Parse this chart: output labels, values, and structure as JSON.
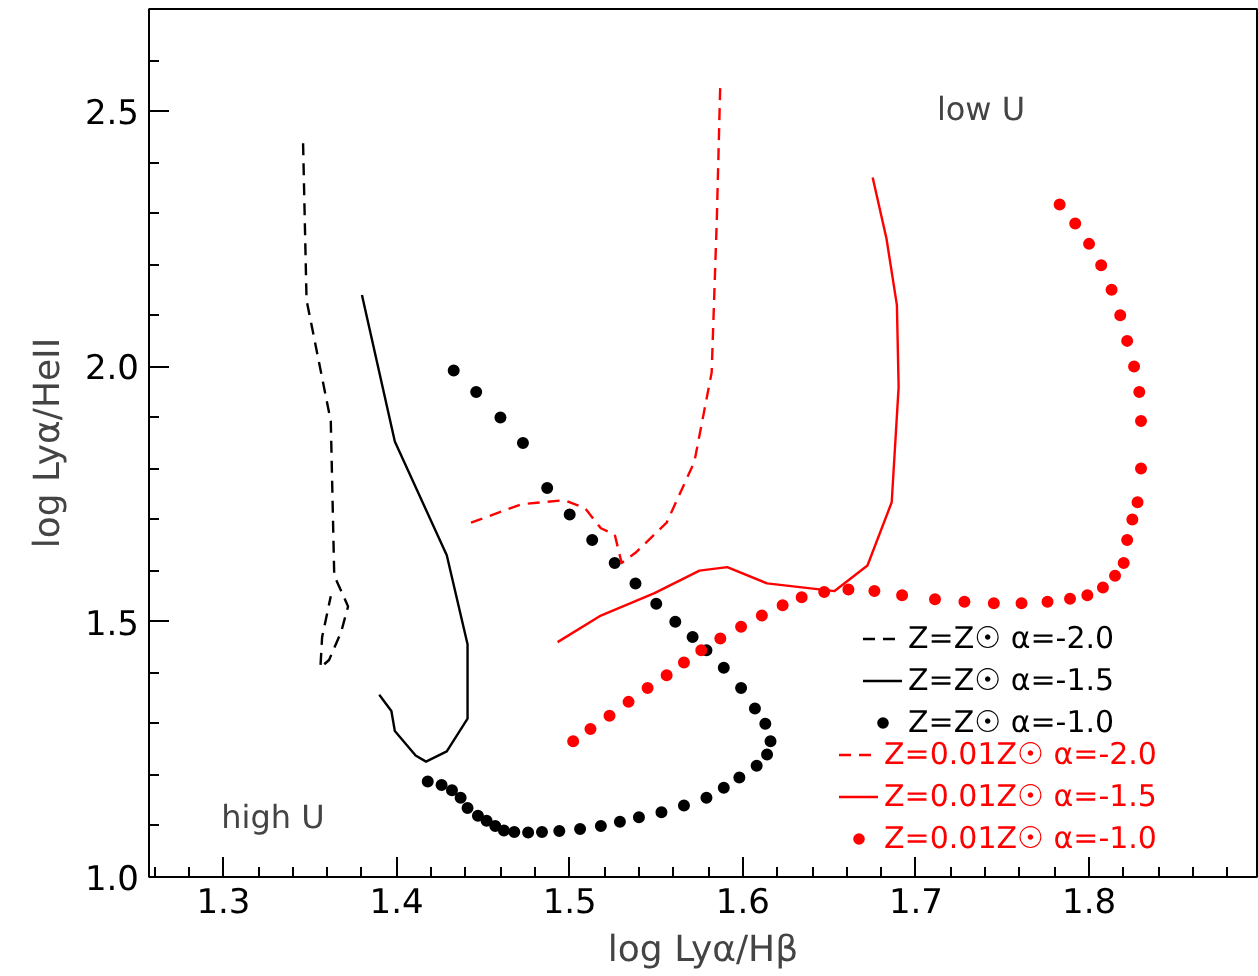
{
  "chart_data": {
    "type": "line",
    "xlabel": "log Lyα/Hβ",
    "ylabel": "log Lyα/HeII",
    "xlim": [
      1.257,
      1.897
    ],
    "ylim": [
      1.0,
      2.7
    ],
    "xticks": [
      1.3,
      1.4,
      1.5,
      1.6,
      1.7,
      1.8
    ],
    "yticks": [
      {
        "value": 1,
        "label": "1.0"
      },
      1.5,
      {
        "value": 2,
        "label": "2.0"
      },
      2.5
    ],
    "grid": false,
    "legend": "bottom right",
    "annotations": [
      "low U",
      "high U"
    ],
    "series": [
      {
        "name": "Z=Z☉ α=-2.0",
        "color": "#000000",
        "line_style": "dashed",
        "x": [
          1.346,
          1.348,
          1.362,
          1.364,
          1.372,
          1.368,
          1.361,
          1.356,
          1.357,
          1.362
        ],
        "values": [
          2.437,
          2.13,
          1.893,
          1.59,
          1.53,
          1.48,
          1.425,
          1.41,
          1.47,
          1.55
        ]
      },
      {
        "name": "Z=Z☉ α=-1.5",
        "color": "#000000",
        "line_style": "solid",
        "x": [
          1.38,
          1.399,
          1.429,
          1.441,
          1.441,
          1.429,
          1.417,
          1.411,
          1.399,
          1.397,
          1.39
        ],
        "values": [
          2.14,
          1.853,
          1.63,
          1.456,
          1.31,
          1.246,
          1.226,
          1.238,
          1.286,
          1.325,
          1.357
        ]
      },
      {
        "name": "Z=Z☉ α=-1.0",
        "color": "#000000",
        "type": "scatter",
        "marker": "circle",
        "x": [
          1.433,
          1.446,
          1.46,
          1.473,
          1.487,
          1.5,
          1.513,
          1.526,
          1.538,
          1.55,
          1.561,
          1.571,
          1.579,
          1.589,
          1.599,
          1.607,
          1.613,
          1.616,
          1.614,
          1.608,
          1.598,
          1.589,
          1.579,
          1.566,
          1.553,
          1.54,
          1.529,
          1.518,
          1.506,
          1.494,
          1.484,
          1.476,
          1.468,
          1.462,
          1.457,
          1.452,
          1.447,
          1.441,
          1.437,
          1.432,
          1.426,
          1.418
        ],
        "values": [
          1.992,
          1.95,
          1.9,
          1.85,
          1.762,
          1.71,
          1.66,
          1.615,
          1.575,
          1.535,
          1.5,
          1.47,
          1.444,
          1.41,
          1.37,
          1.33,
          1.3,
          1.266,
          1.24,
          1.218,
          1.195,
          1.175,
          1.155,
          1.14,
          1.127,
          1.117,
          1.108,
          1.1,
          1.094,
          1.09,
          1.088,
          1.087,
          1.088,
          1.091,
          1.1,
          1.11,
          1.12,
          1.135,
          1.155,
          1.17,
          1.18,
          1.187
        ]
      },
      {
        "name": "Z=0.01Z☉ α=-2.0",
        "color": "#ff0000",
        "line_style": "dashed",
        "x": [
          1.443,
          1.472,
          1.497,
          1.509,
          1.518,
          1.526,
          1.53,
          1.538,
          1.556,
          1.572,
          1.582,
          1.585,
          1.587
        ],
        "values": [
          1.694,
          1.73,
          1.738,
          1.722,
          1.683,
          1.671,
          1.615,
          1.635,
          1.694,
          1.813,
          1.988,
          2.29,
          2.556
        ]
      },
      {
        "name": "Z=0.01Z☉ α=-1.5",
        "color": "#ff0000",
        "line_style": "solid",
        "x": [
          1.493,
          1.518,
          1.549,
          1.575,
          1.591,
          1.614,
          1.653,
          1.672,
          1.686,
          1.69,
          1.689,
          1.683,
          1.675
        ],
        "values": [
          1.46,
          1.512,
          1.556,
          1.6,
          1.607,
          1.575,
          1.56,
          1.61,
          1.734,
          1.96,
          2.12,
          2.25,
          2.37
        ]
      },
      {
        "name": "Z=0.01Z☉ α=-1.0",
        "color": "#ff0000",
        "type": "scatter",
        "marker": "circle",
        "x": [
          1.502,
          1.512,
          1.523,
          1.534,
          1.545,
          1.556,
          1.566,
          1.576,
          1.587,
          1.599,
          1.611,
          1.623,
          1.634,
          1.647,
          1.661,
          1.676,
          1.692,
          1.711,
          1.728,
          1.745,
          1.761,
          1.776,
          1.789,
          1.799,
          1.808,
          1.815,
          1.82,
          1.822,
          1.825,
          1.828,
          1.83,
          1.83,
          1.829,
          1.826,
          1.822,
          1.818,
          1.813,
          1.807,
          1.8,
          1.792,
          1.783
        ],
        "values": [
          1.266,
          1.29,
          1.316,
          1.343,
          1.37,
          1.395,
          1.42,
          1.444,
          1.467,
          1.49,
          1.512,
          1.532,
          1.548,
          1.558,
          1.563,
          1.56,
          1.552,
          1.544,
          1.539,
          1.536,
          1.536,
          1.539,
          1.545,
          1.552,
          1.567,
          1.59,
          1.615,
          1.66,
          1.7,
          1.734,
          1.8,
          1.893,
          1.95,
          2.0,
          2.05,
          2.1,
          2.15,
          2.198,
          2.24,
          2.28,
          2.317
        ]
      }
    ]
  }
}
